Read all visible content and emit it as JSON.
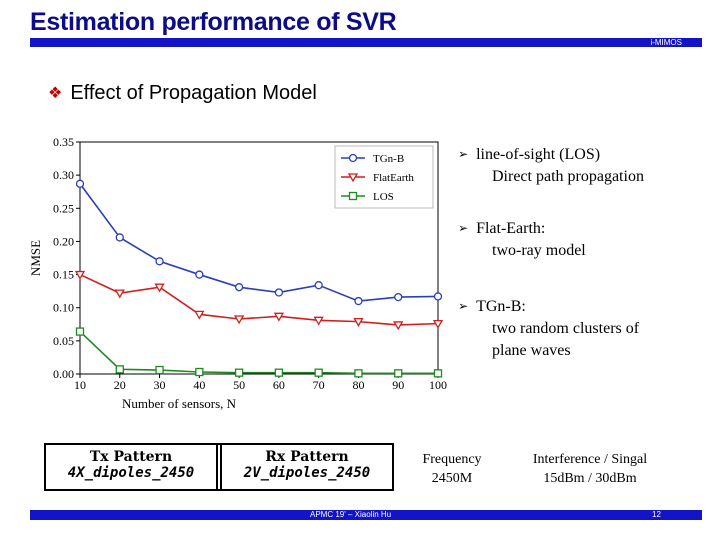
{
  "slide": {
    "title": "Estimation performance of SVR",
    "lab_label": "i-MIMOS",
    "section_heading": "Effect of Propagation Model",
    "footer_center": "APMC 19' – Xiaolin Hu",
    "page_number": "12",
    "accent_color": "#1313c8",
    "title_color": "#0c0c8a",
    "bullet_icon": "diamond-bullet-icon"
  },
  "bullets": [
    {
      "head": "line-of-sight (LOS)",
      "lines": [
        "Direct path propagation"
      ]
    },
    {
      "head": "Flat-Earth:",
      "lines": [
        "two-ray model"
      ]
    },
    {
      "head": "TGn-B:",
      "lines": [
        "two random clusters of",
        "plane waves"
      ]
    }
  ],
  "info": {
    "tx_title": "Tx Pattern",
    "tx_value": "4X_dipoles_2450",
    "rx_title": "Rx Pattern",
    "rx_value": "2V_dipoles_2450",
    "freq_title": "Frequency",
    "freq_value": "2450M",
    "intf_title": "Interference / Singal",
    "intf_value": "15dBm / 30dBm"
  },
  "chart_data": {
    "type": "line",
    "xlabel": "Number of sensors, N",
    "ylabel": "NMSE",
    "x": [
      10,
      20,
      30,
      40,
      50,
      60,
      70,
      80,
      90,
      100
    ],
    "xlim": [
      10,
      100
    ],
    "ylim": [
      0,
      0.35
    ],
    "yticks": [
      0.0,
      0.05,
      0.1,
      0.15,
      0.2,
      0.25,
      0.3,
      0.35
    ],
    "xticks": [
      10,
      20,
      30,
      40,
      50,
      60,
      70,
      80,
      90,
      100
    ],
    "grid": false,
    "legend": "top-right",
    "series": [
      {
        "name": "TGn-B",
        "color": "#2a3fb8",
        "marker": "circle",
        "values": [
          0.287,
          0.206,
          0.17,
          0.15,
          0.131,
          0.123,
          0.134,
          0.11,
          0.116,
          0.117
        ]
      },
      {
        "name": "FlatEarth",
        "color": "#d11f1f",
        "marker": "triangle-down",
        "values": [
          0.15,
          0.122,
          0.131,
          0.09,
          0.083,
          0.087,
          0.081,
          0.079,
          0.074,
          0.076
        ]
      },
      {
        "name": "LOS",
        "color": "#1f8a1f",
        "marker": "square",
        "values": [
          0.064,
          0.007,
          0.006,
          0.003,
          0.002,
          0.002,
          0.002,
          0.001,
          0.001,
          0.001
        ]
      }
    ]
  }
}
